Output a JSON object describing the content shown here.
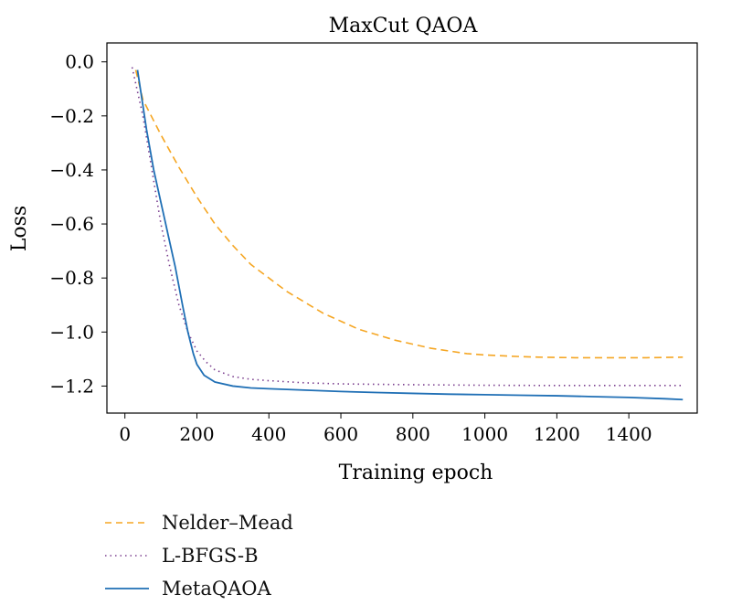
{
  "chart_data": {
    "type": "line",
    "title": "MaxCut QAOA",
    "xlabel": "Training epoch",
    "ylabel": "Loss",
    "xlim": [
      -50,
      1590
    ],
    "ylim": [
      -1.3,
      0.07
    ],
    "xticks": [
      0,
      200,
      400,
      600,
      800,
      1000,
      1200,
      1400
    ],
    "xtick_labels": [
      "0",
      "200",
      "400",
      "600",
      "800",
      "1000",
      "1200",
      "1400"
    ],
    "yticks": [
      0.0,
      -0.2,
      -0.4,
      -0.6,
      -0.8,
      -1.0,
      -1.2
    ],
    "ytick_labels": [
      "0.0",
      "−0.2",
      "−0.4",
      "−0.6",
      "−0.8",
      "−1.0",
      "−1.2"
    ],
    "grid": false,
    "legend_position": "below",
    "series": [
      {
        "name": "Nelder–Mead",
        "color": "#f5a623",
        "style": "dashed",
        "x": [
          30,
          50,
          100,
          150,
          200,
          250,
          300,
          350,
          400,
          450,
          500,
          550,
          600,
          650,
          700,
          750,
          800,
          850,
          900,
          950,
          1000,
          1050,
          1100,
          1150,
          1200,
          1250,
          1300,
          1350,
          1400,
          1450,
          1500,
          1550
        ],
        "y": [
          -0.03,
          -0.14,
          -0.27,
          -0.39,
          -0.5,
          -0.6,
          -0.68,
          -0.75,
          -0.8,
          -0.85,
          -0.89,
          -0.93,
          -0.96,
          -0.99,
          -1.01,
          -1.03,
          -1.045,
          -1.06,
          -1.07,
          -1.08,
          -1.085,
          -1.088,
          -1.091,
          -1.093,
          -1.094,
          -1.095,
          -1.095,
          -1.095,
          -1.095,
          -1.095,
          -1.094,
          -1.093
        ]
      },
      {
        "name": "L-BFGS-B",
        "color": "#7b3f8f",
        "style": "dotted",
        "x": [
          20,
          50,
          75,
          100,
          125,
          150,
          175,
          200,
          225,
          250,
          300,
          350,
          400,
          500,
          600,
          800,
          1000,
          1200,
          1400,
          1550
        ],
        "y": [
          -0.02,
          -0.2,
          -0.4,
          -0.6,
          -0.76,
          -0.9,
          -1.0,
          -1.07,
          -1.11,
          -1.14,
          -1.165,
          -1.175,
          -1.18,
          -1.188,
          -1.192,
          -1.195,
          -1.197,
          -1.198,
          -1.198,
          -1.198
        ]
      },
      {
        "name": "MetaQAOA",
        "color": "#1f6fb5",
        "style": "solid",
        "x": [
          35,
          60,
          80,
          100,
          120,
          140,
          160,
          175,
          190,
          200,
          220,
          250,
          300,
          350,
          400,
          500,
          600,
          700,
          800,
          900,
          1000,
          1100,
          1200,
          1300,
          1400,
          1500,
          1550
        ],
        "y": [
          -0.03,
          -0.25,
          -0.4,
          -0.52,
          -0.64,
          -0.76,
          -0.9,
          -1.0,
          -1.08,
          -1.12,
          -1.16,
          -1.185,
          -1.2,
          -1.207,
          -1.21,
          -1.215,
          -1.22,
          -1.224,
          -1.227,
          -1.23,
          -1.232,
          -1.234,
          -1.236,
          -1.239,
          -1.242,
          -1.247,
          -1.25
        ]
      }
    ]
  }
}
